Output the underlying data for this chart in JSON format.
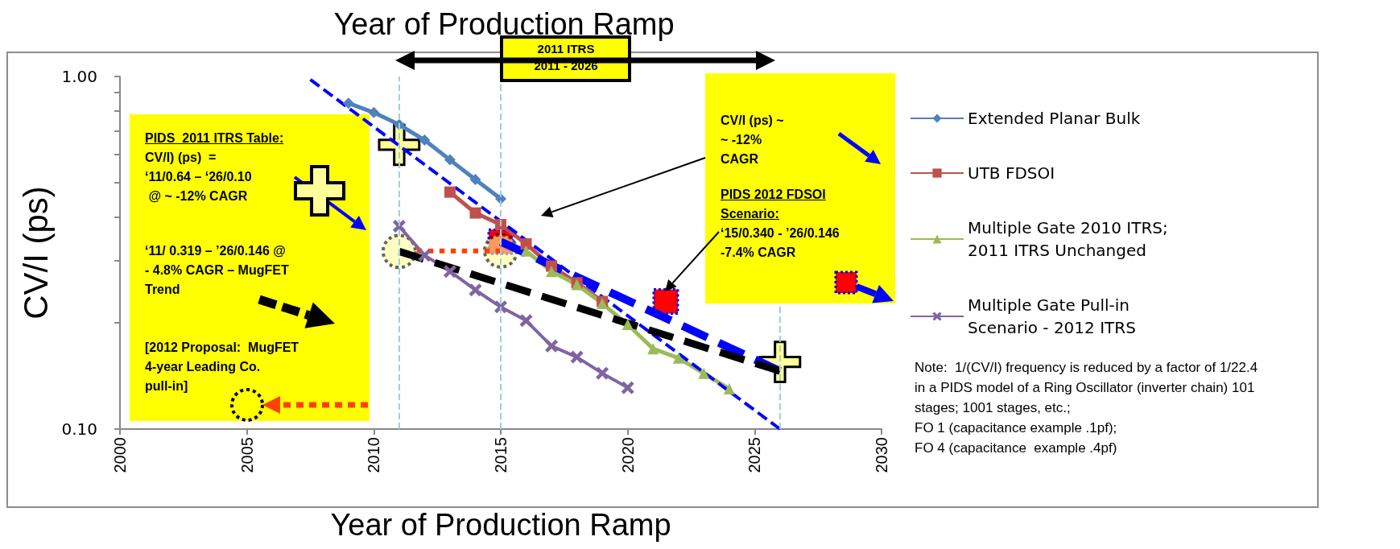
{
  "chart_data": {
    "type": "line",
    "title": "Year of Production Ramp",
    "xlabel": "Year of Production Ramp",
    "ylabel": "CV/I (ps)",
    "xlim": [
      2000,
      2030
    ],
    "xticks": [
      2000,
      2005,
      2010,
      2015,
      2020,
      2025,
      2030
    ],
    "ylim": [
      0.1,
      1
    ],
    "yticks": [
      {
        "value": 0.1,
        "label": "0.10"
      },
      {
        "value": 0.2,
        "label": null
      },
      {
        "value": 0.3,
        "label": null
      },
      {
        "value": 0.4,
        "label": null
      },
      {
        "value": 0.5,
        "label": null
      },
      {
        "value": 0.6,
        "label": null
      },
      {
        "value": 0.7,
        "label": null
      },
      {
        "value": 0.8,
        "label": null
      },
      {
        "value": 0.9,
        "label": null
      },
      {
        "value": 1,
        "label": "1.00"
      }
    ],
    "log": "y",
    "grid": false,
    "legend": "right",
    "series": [
      {
        "name": "Extended Planar Bulk",
        "color": "#4f81bd",
        "marker": "diamond",
        "x": [
          2009,
          2010,
          2011,
          2012,
          2013,
          2014,
          2015
        ],
        "values": [
          0.84,
          0.79,
          0.73,
          0.66,
          0.58,
          0.51,
          0.45
        ]
      },
      {
        "name": "UTB FDSOI",
        "color": "#c0504d",
        "marker": "square",
        "x": [
          2013,
          2014,
          2015,
          2016,
          2017,
          2018,
          2019
        ],
        "values": [
          0.47,
          0.41,
          0.38,
          0.335,
          0.29,
          0.26,
          0.23
        ]
      },
      {
        "name": "Multiple Gate 2010 ITRS; 2011 ITRS Unchanged",
        "color": "#9bbb59",
        "marker": "triangle",
        "x": [
          2016,
          2017,
          2018,
          2019,
          2020,
          2021,
          2022,
          2023,
          2024
        ],
        "values": [
          0.32,
          0.28,
          0.257,
          0.227,
          0.198,
          0.169,
          0.159,
          0.144,
          0.13
        ]
      },
      {
        "name": "Multiple Gate Pull-in Scenario - 2012 ITRS",
        "color": "#8064a2",
        "marker": "cross",
        "x": [
          2011,
          2012,
          2013,
          2014,
          2015,
          2016,
          2017,
          2018,
          2019,
          2020
        ],
        "values": [
          0.376,
          0.311,
          0.28,
          0.248,
          0.222,
          0.203,
          0.172,
          0.16,
          0.144,
          0.131
        ]
      },
      {
        "type": "line",
        "color": "#0000ff",
        "marker": "none",
        "line_style": "dashed",
        "x": [
          2007.5,
          2026
        ],
        "values": [
          0.98,
          0.1
        ]
      },
      {
        "type": "line",
        "color": "#0000ff",
        "marker": "none",
        "line_style": "dashed",
        "x": [
          2015,
          2026
        ],
        "values": [
          0.34,
          0.146
        ]
      },
      {
        "type": "line",
        "color": "#000000",
        "marker": "none",
        "line_style": "dashed",
        "x": [
          2011,
          2026
        ],
        "values": [
          0.319,
          0.146
        ]
      },
      {
        "type": "line",
        "color": "#ff4000",
        "marker": "none",
        "line_style": "dotted",
        "x": [
          2015,
          2011.7
        ],
        "values": [
          0.32,
          0.32
        ]
      },
      {
        "type": "scatter",
        "color": "#ffff99",
        "marker": "cross",
        "x": [
          2011,
          2026
        ],
        "values": [
          0.64,
          0.155
        ]
      },
      {
        "type": "scatter",
        "color": "#ffff99",
        "marker": "circle",
        "x": [
          2011,
          2015
        ],
        "values": [
          0.319,
          0.32
        ]
      },
      {
        "type": "scatter",
        "color": "#ff0000",
        "marker": "square",
        "x": [
          2015,
          2021.5
        ],
        "values": [
          0.34,
          0.23
        ]
      }
    ],
    "ref_lines": [
      {
        "axis": "x",
        "value": 2011,
        "color": "#9ed0d6",
        "line_style": "dashed"
      },
      {
        "axis": "x",
        "value": 2015,
        "color": "#9ed0d6",
        "line_style": "dashed"
      },
      {
        "axis": "x",
        "value": 2026,
        "color": "#9ed0d6",
        "line_style": "dashed"
      }
    ],
    "annotations": [
      "2011 ITRS\n2011 - 2026",
      "PIDS  2011 ITRS Table:",
      "CV/I) (ps)  =\n‘11/0.64 – ‘26/0.10\n @ ~ -12% CAGR",
      "‘11/ 0.319 – ’26/0.146 @\n- 4.8% CAGR – MugFET\nTrend",
      "[2012 Proposal:  MugFET\n4-year Leading Co.\npull-in]",
      "CV/I (ps) ~\n~ -12%\nCAGR",
      "PIDS 2012 FDSOI\nScenario:",
      "‘15/0.340 - ’26/0.146\n-7.4% CAGR",
      "Note:  1/(CV/I) frequency is reduced by a factor of 1/22.4\nin a PIDS model of a Ring Oscillator (inverter chain) 101\nstages; 1001 stages, etc.;\nFO 1 (capacitance example .1pf);\nFO 4 (capacitance  example .4pf)"
    ]
  }
}
